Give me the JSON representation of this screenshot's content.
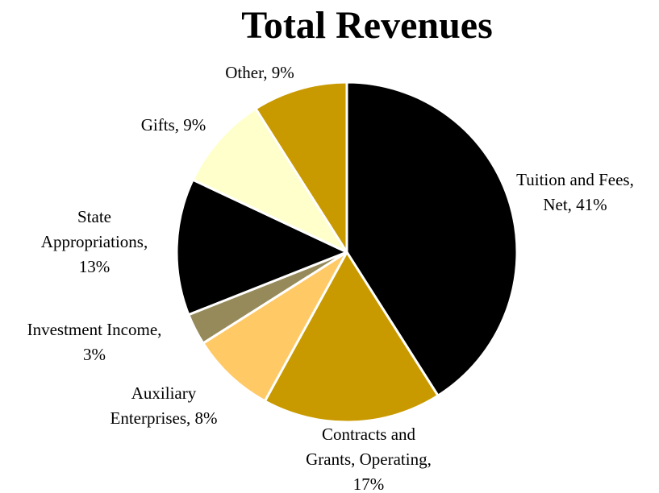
{
  "chart_data": {
    "type": "pie",
    "title": "Total Revenues",
    "values": [
      41,
      17,
      8,
      3,
      13,
      9,
      9
    ],
    "labels": [
      [
        "Tuition and Fees,",
        "Net, 41%"
      ],
      [
        "Contracts and",
        "Grants, Operating,",
        "17%"
      ],
      [
        "Auxiliary",
        "Enterprises, 8%"
      ],
      [
        "Investment Income,",
        "3%"
      ],
      [
        "State",
        "Appropriations,",
        "13%"
      ],
      [
        "Gifts, 9%"
      ],
      [
        "Other, 9%"
      ]
    ],
    "colors": [
      "#000000",
      "#c99a00",
      "#ffc966",
      "#968a5a",
      "#000000",
      "#ffffcc",
      "#c99a00"
    ]
  }
}
